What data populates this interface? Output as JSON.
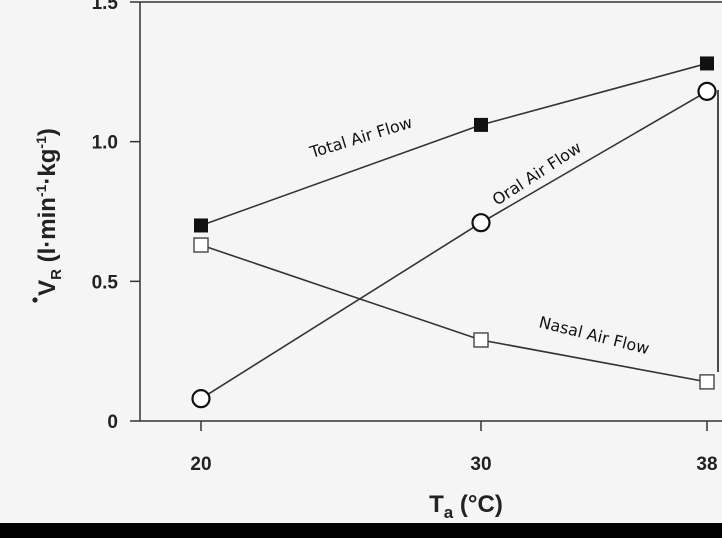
{
  "chart_data": {
    "type": "line",
    "xlabel_main": "T",
    "xlabel_sub": "a",
    "xlabel_unit": " (°C)",
    "ylabel_main": "V",
    "ylabel_sub": "R",
    "ylabel_unit": " (l·min",
    "ylabel_exp1": "-1",
    "ylabel_mid": "·kg",
    "ylabel_exp2": "-1",
    "ylabel_close": ")",
    "x_ticks": [
      "20",
      "30",
      "38"
    ],
    "y_ticks": [
      "0",
      "0.5",
      "1.0",
      "1.5"
    ],
    "x": [
      20,
      30,
      38
    ],
    "ylim": [
      0,
      1.5
    ],
    "series": [
      {
        "name": "Total Air Flow",
        "marker": "filled-square",
        "values": [
          0.7,
          1.06,
          1.28
        ]
      },
      {
        "name": "Oral Air Flow",
        "marker": "open-circle",
        "values": [
          0.08,
          0.71,
          1.18
        ]
      },
      {
        "name": "Nasal Air Flow",
        "marker": "open-square",
        "values": [
          0.63,
          0.29,
          0.14
        ]
      }
    ],
    "colors": {
      "line": "#333333",
      "marker_fill": "#111111",
      "background": "#f5f5f5"
    }
  }
}
